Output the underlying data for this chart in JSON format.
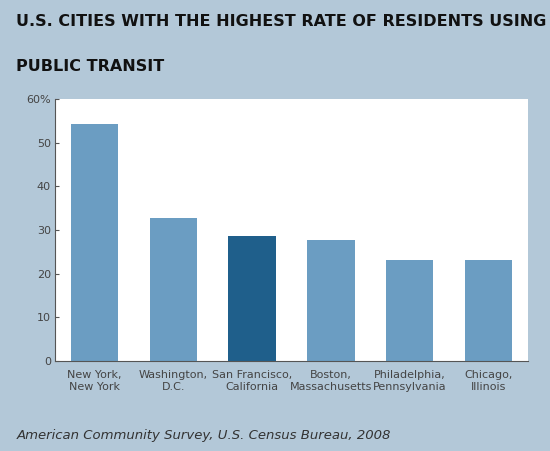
{
  "title_line1": "U.S. CITIES WITH THE HIGHEST RATE OF RESIDENTS USING",
  "title_line2": "PUBLIC TRANSIT",
  "categories": [
    "New York,\nNew York",
    "Washington,\nD.C.",
    "San Francisco,\nCalifornia",
    "Boston,\nMassachusetts",
    "Philadelphia,\nPennsylvania",
    "Chicago,\nIllinois"
  ],
  "values": [
    54.3,
    32.7,
    28.7,
    27.7,
    23.2,
    23.1
  ],
  "bar_colors": [
    "#6b9dc2",
    "#6b9dc2",
    "#1f5f8b",
    "#6b9dc2",
    "#6b9dc2",
    "#6b9dc2"
  ],
  "ylim": [
    0,
    60
  ],
  "yticks": [
    0,
    10,
    20,
    30,
    40,
    50,
    60
  ],
  "ytick_labels": [
    "0",
    "10",
    "20",
    "30",
    "40",
    "50",
    "60%"
  ],
  "background_outer": "#b3c8d8",
  "background_inner": "#ffffff",
  "source_text": "American Community Survey, U.S. Census Bureau, 2008",
  "title_fontsize": 11.5,
  "tick_fontsize": 8.0,
  "source_fontsize": 9.5
}
